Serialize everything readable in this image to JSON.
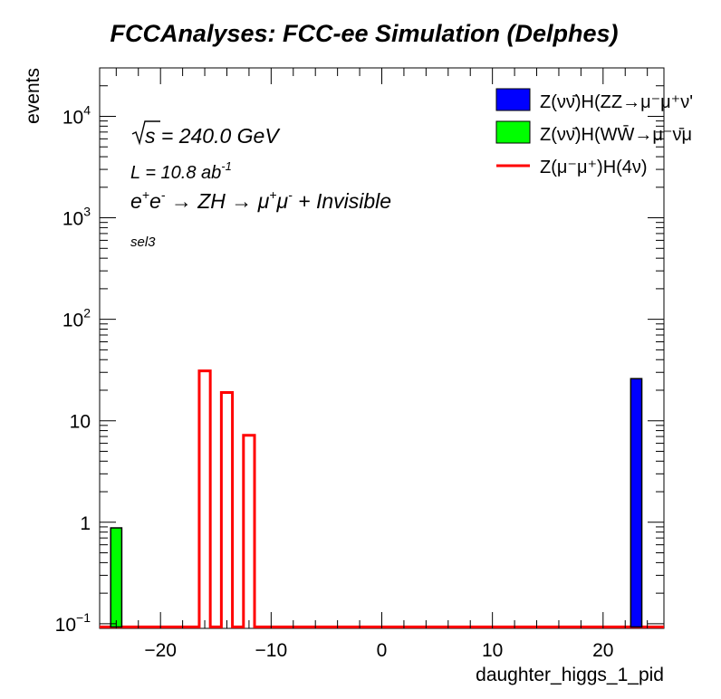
{
  "chart_data": {
    "type": "bar",
    "title": "FCCAnalyses: FCC-ee Simulation (Delphes)",
    "xlabel": "daughter_higgs_1_pid",
    "ylabel": "events",
    "xlim": [
      -25.5,
      25.5
    ],
    "ylim": [
      0.09,
      30000
    ],
    "log_y": true,
    "grid": false,
    "legend_position": "top-right",
    "x_ticks": [
      -20,
      -10,
      0,
      10,
      20
    ],
    "y_ticks": [
      {
        "value": 0.1,
        "base": "10",
        "exp": "−1"
      },
      {
        "value": 1,
        "base": "1",
        "exp": ""
      },
      {
        "value": 10,
        "base": "10",
        "exp": ""
      },
      {
        "value": 100,
        "base": "10",
        "exp": "2"
      },
      {
        "value": 1000,
        "base": "10",
        "exp": "3"
      },
      {
        "value": 10000,
        "base": "10",
        "exp": "4"
      }
    ],
    "annotations": {
      "energy": "s = 240.0 GeV",
      "lumi_prefix": "L = 10.8 ab",
      "lumi_exp": "-1",
      "process_prefix": "e",
      "process_rest": "ZH",
      "process_mu": "μ",
      "process_tail": "+ Invisible",
      "selection": "sel3"
    },
    "series": [
      {
        "name": "Z(νν̄)H(ZZ→μ⁻μ⁺ν'",
        "style": "filled",
        "color": "#0000ff",
        "bins": [
          {
            "x": 23,
            "value": 26
          }
        ]
      },
      {
        "name": "Z(νν̄)H(WW̄→μ⁻ν̄μ",
        "style": "filled",
        "color": "#00ff00",
        "bins": [
          {
            "x": -24,
            "value": 0.88
          }
        ]
      },
      {
        "name": "Z(μ⁻μ⁺)H(4ν)",
        "style": "step",
        "color": "#ff0000",
        "bins": [
          {
            "x": -16,
            "value": 31
          },
          {
            "x": -14,
            "value": 19
          },
          {
            "x": -12,
            "value": 7.2
          }
        ]
      }
    ]
  }
}
